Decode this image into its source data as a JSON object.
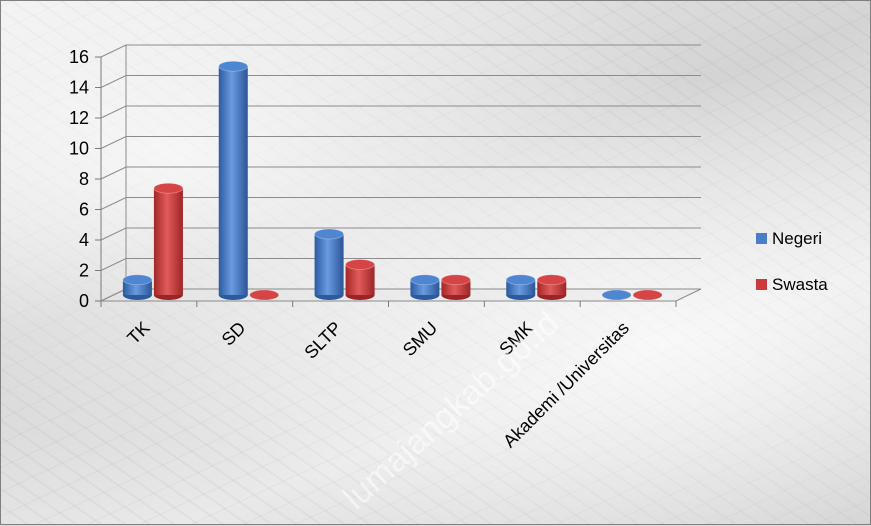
{
  "chart_data": {
    "type": "bar",
    "categories": [
      "TK",
      "SD",
      "SLTP",
      "SMU",
      "SMK",
      "Akademi /Universitas"
    ],
    "series": [
      {
        "name": "Negeri",
        "values": [
          1,
          15,
          4,
          1,
          1,
          0
        ],
        "color": "#4a7fc8"
      },
      {
        "name": "Swasta",
        "values": [
          7,
          0,
          2,
          1,
          1,
          0
        ],
        "color": "#cc3b3b"
      }
    ],
    "yticks": [
      0,
      2,
      4,
      6,
      8,
      10,
      12,
      14,
      16
    ],
    "ylim": [
      0,
      16
    ],
    "grid": true,
    "legend": "right",
    "style": "3d-cylinder"
  },
  "watermark": "lumajangkab.go.id"
}
